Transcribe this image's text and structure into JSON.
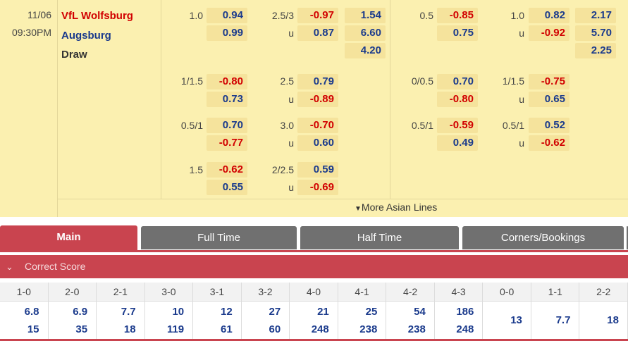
{
  "match": {
    "date": "11/06",
    "time": "09:30PM",
    "home": "VfL Wolfsburg",
    "away": "Augsburg",
    "draw": "Draw"
  },
  "ft": {
    "hdp": [
      {
        "line": "1.0",
        "home": "0.94",
        "away": "0.99"
      },
      {
        "line": "1/1.5",
        "home": "-0.80",
        "away": "0.73"
      },
      {
        "line": "0.5/1",
        "home": "0.70",
        "away": "-0.77"
      },
      {
        "line": "1.5",
        "home": "-0.62",
        "away": "0.55"
      }
    ],
    "ou": [
      {
        "line": "2.5/3",
        "under": "u",
        "over": "-0.97",
        "under_odd": "0.87"
      },
      {
        "line": "2.5",
        "under": "u",
        "over": "0.79",
        "under_odd": "-0.89"
      },
      {
        "line": "3.0",
        "under": "u",
        "over": "-0.70",
        "under_odd": "0.60"
      },
      {
        "line": "2/2.5",
        "under": "u",
        "over": "0.59",
        "under_odd": "-0.69"
      }
    ],
    "x12": [
      "1.54",
      "6.60",
      "4.20"
    ]
  },
  "ht": {
    "hdp": [
      {
        "line": "0.5",
        "home": "-0.85",
        "away": "0.75"
      },
      {
        "line": "0/0.5",
        "home": "0.70",
        "away": "-0.80"
      },
      {
        "line": "0.5/1",
        "home": "-0.59",
        "away": "0.49"
      }
    ],
    "ou": [
      {
        "line": "1.0",
        "under": "u",
        "over": "0.82",
        "under_odd": "-0.92"
      },
      {
        "line": "1/1.5",
        "under": "u",
        "over": "-0.75",
        "under_odd": "0.65"
      },
      {
        "line": "0.5/1",
        "under": "u",
        "over": "0.52",
        "under_odd": "-0.62"
      }
    ],
    "x12": [
      "2.17",
      "5.70",
      "2.25"
    ]
  },
  "more_lines": "More Asian Lines",
  "tabs": [
    "Main",
    "Full Time",
    "Half Time",
    "Corners/Bookings"
  ],
  "section": {
    "title": "Correct Score"
  },
  "correct_score": {
    "headers": [
      "1-0",
      "2-0",
      "2-1",
      "3-0",
      "3-1",
      "3-2",
      "4-0",
      "4-1",
      "4-2",
      "4-3",
      "0-0",
      "1-1",
      "2-2"
    ],
    "row1": [
      "6.8",
      "6.9",
      "7.7",
      "10",
      "12",
      "27",
      "21",
      "25",
      "54",
      "186",
      "13",
      "7.7",
      "18"
    ],
    "row2": [
      "15",
      "35",
      "18",
      "119",
      "61",
      "60",
      "248",
      "238",
      "238",
      "248",
      "",
      "",
      ""
    ]
  },
  "colors": {
    "accent": "#c9444f",
    "home": "#d10000",
    "away": "#1a3a8c",
    "panel": "#fbf0b0",
    "odd_bg": "#f5e39c"
  }
}
